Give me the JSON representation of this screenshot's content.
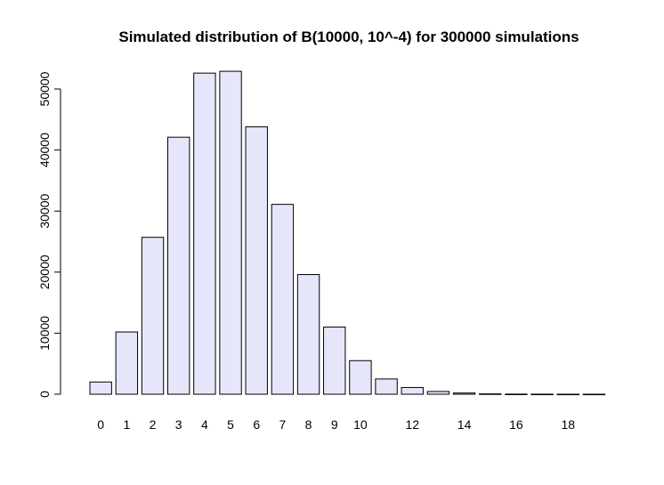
{
  "chart_data": {
    "type": "bar",
    "title": "Simulated distribution of B(10000, 10^-4) for 300000 simulations",
    "xlabel": "",
    "ylabel": "",
    "categories": [
      "0",
      "1",
      "2",
      "3",
      "4",
      "5",
      "6",
      "7",
      "8",
      "9",
      "10",
      "11",
      "12",
      "13",
      "14",
      "15",
      "16",
      "17",
      "18",
      "19"
    ],
    "shown_category_labels": [
      "0",
      "1",
      "2",
      "3",
      "4",
      "5",
      "6",
      "7",
      "8",
      "9",
      "10",
      "12",
      "14",
      "16",
      "18"
    ],
    "values": [
      2000,
      10200,
      25700,
      42100,
      52600,
      52900,
      43800,
      31100,
      19600,
      11000,
      5500,
      2500,
      1100,
      450,
      200,
      60,
      20,
      10,
      5,
      2
    ],
    "ylim": [
      0,
      50000
    ],
    "yticks": [
      "0",
      "10000",
      "20000",
      "30000",
      "40000",
      "50000"
    ],
    "bar_fill": "#e6e6fa",
    "bar_stroke": "#000000",
    "grid": false,
    "legend": "none"
  }
}
